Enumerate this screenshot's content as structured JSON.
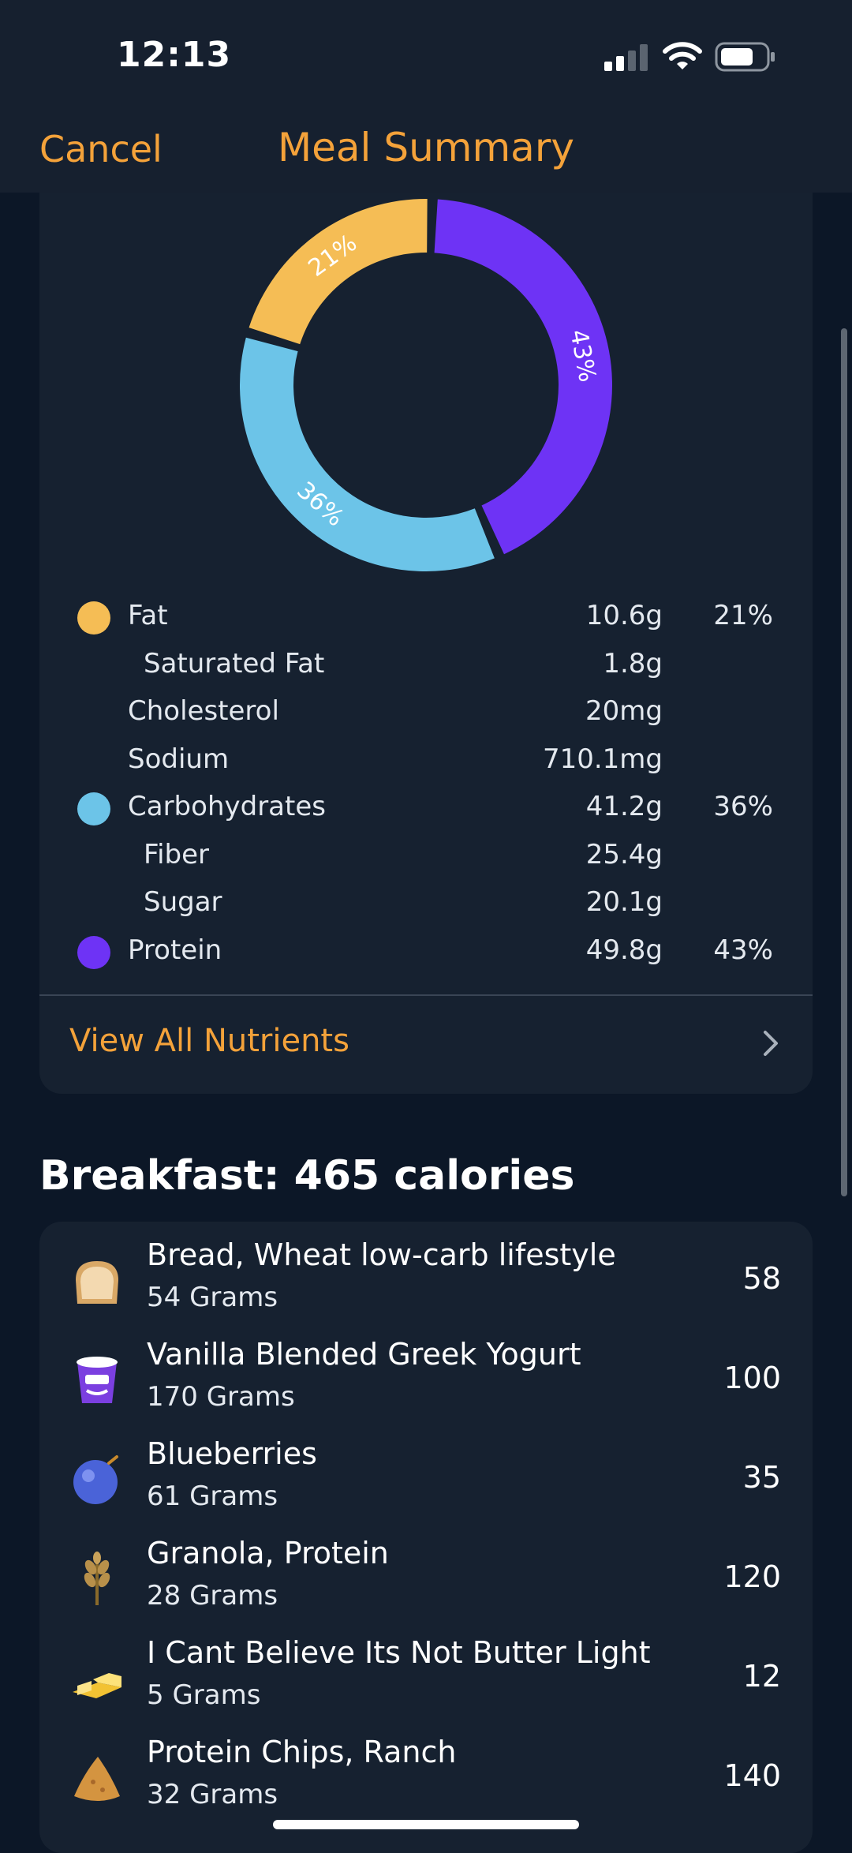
{
  "status": {
    "time": "12:13"
  },
  "nav": {
    "cancel_label": "Cancel",
    "title": "Meal Summary"
  },
  "chart_data": {
    "type": "pie",
    "style": "donut",
    "categories": [
      "Fat",
      "Carbohydrates",
      "Protein"
    ],
    "values": [
      21,
      36,
      43
    ],
    "labels": [
      "21%",
      "36%",
      "43%"
    ],
    "colors": [
      "#f5bd55",
      "#6cc4e8",
      "#6e33f5"
    ]
  },
  "nutrients": [
    {
      "name": "Fat",
      "amount": "10.6g",
      "pct": "21%",
      "color": "#f5bd55",
      "level": 0
    },
    {
      "name": "Saturated Fat",
      "amount": "1.8g",
      "pct": "",
      "color": "",
      "level": 1
    },
    {
      "name": "Cholesterol",
      "amount": "20mg",
      "pct": "",
      "color": "",
      "level": 0
    },
    {
      "name": "Sodium",
      "amount": "710.1mg",
      "pct": "",
      "color": "",
      "level": 0
    },
    {
      "name": "Carbohydrates",
      "amount": "41.2g",
      "pct": "36%",
      "color": "#6cc4e8",
      "level": 0
    },
    {
      "name": "Fiber",
      "amount": "25.4g",
      "pct": "",
      "color": "",
      "level": 1
    },
    {
      "name": "Sugar",
      "amount": "20.1g",
      "pct": "",
      "color": "",
      "level": 1
    },
    {
      "name": "Protein",
      "amount": "49.8g",
      "pct": "43%",
      "color": "#6e33f5",
      "level": 0
    }
  ],
  "view_all_label": "View All Nutrients",
  "meal": {
    "title": "Breakfast: 465 calories",
    "items": [
      {
        "name": "Bread, Wheat low-carb lifestyle",
        "portion": "54 Grams",
        "calories": "58",
        "icon": "bread-icon"
      },
      {
        "name": "Vanilla Blended Greek Yogurt",
        "portion": "170 Grams",
        "calories": "100",
        "icon": "yogurt-icon"
      },
      {
        "name": "Blueberries",
        "portion": "61 Grams",
        "calories": "35",
        "icon": "blueberry-icon"
      },
      {
        "name": "Granola, Protein",
        "portion": "28 Grams",
        "calories": "120",
        "icon": "grain-icon"
      },
      {
        "name": "I Cant Believe Its Not Butter Light",
        "portion": "5 Grams",
        "calories": "12",
        "icon": "butter-icon"
      },
      {
        "name": "Protein Chips, Ranch",
        "portion": "32 Grams",
        "calories": "140",
        "icon": "chip-icon"
      }
    ]
  }
}
